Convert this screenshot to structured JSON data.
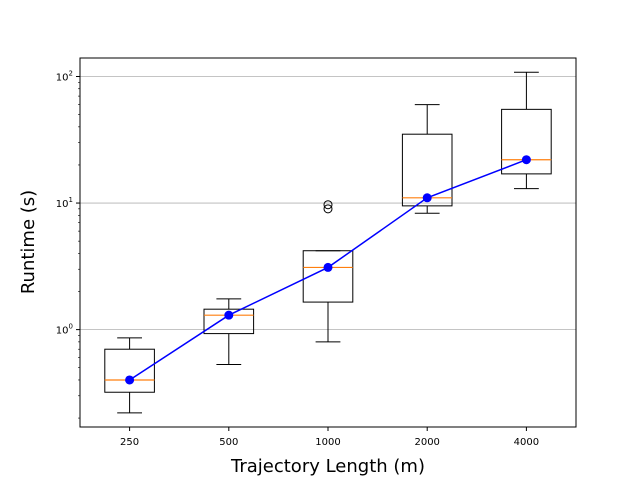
{
  "chart_data": {
    "type": "box",
    "title": "",
    "xlabel": "Trajectory Length (m)",
    "ylabel": "Runtime (s)",
    "yscale": "log",
    "ylim": [
      0.17,
      140
    ],
    "categories": [
      "250",
      "500",
      "1000",
      "2000",
      "4000"
    ],
    "y_ticks": [
      {
        "value": 1,
        "base": "10",
        "exp": "0"
      },
      {
        "value": 10,
        "base": "10",
        "exp": "1"
      },
      {
        "value": 100,
        "base": "10",
        "exp": "2"
      }
    ],
    "grid": "y-major",
    "boxes": [
      {
        "category": "250",
        "whisker_low": 0.22,
        "q1": 0.32,
        "median": 0.4,
        "q3": 0.7,
        "whisker_high": 0.86,
        "outliers": []
      },
      {
        "category": "500",
        "whisker_low": 0.53,
        "q1": 0.93,
        "median": 1.3,
        "q3": 1.45,
        "whisker_high": 1.75,
        "outliers": []
      },
      {
        "category": "1000",
        "whisker_low": 0.8,
        "q1": 1.65,
        "median": 3.1,
        "q3": 4.2,
        "whisker_high": 4.2,
        "outliers": [
          9.0,
          9.7
        ]
      },
      {
        "category": "2000",
        "whisker_low": 8.3,
        "q1": 9.5,
        "median": 11.0,
        "q3": 35.0,
        "whisker_high": 60.0,
        "outliers": []
      },
      {
        "category": "4000",
        "whisker_low": 13.0,
        "q1": 17.0,
        "median": 22.0,
        "q3": 55.0,
        "whisker_high": 108.0,
        "outliers": []
      }
    ],
    "mean_line": {
      "values": [
        0.4,
        1.3,
        3.1,
        11.0,
        22.0
      ],
      "color": "#0000ff"
    },
    "colors": {
      "box": "#000000",
      "median": "#ff7f0e",
      "grid": "#b0b0b0"
    }
  }
}
